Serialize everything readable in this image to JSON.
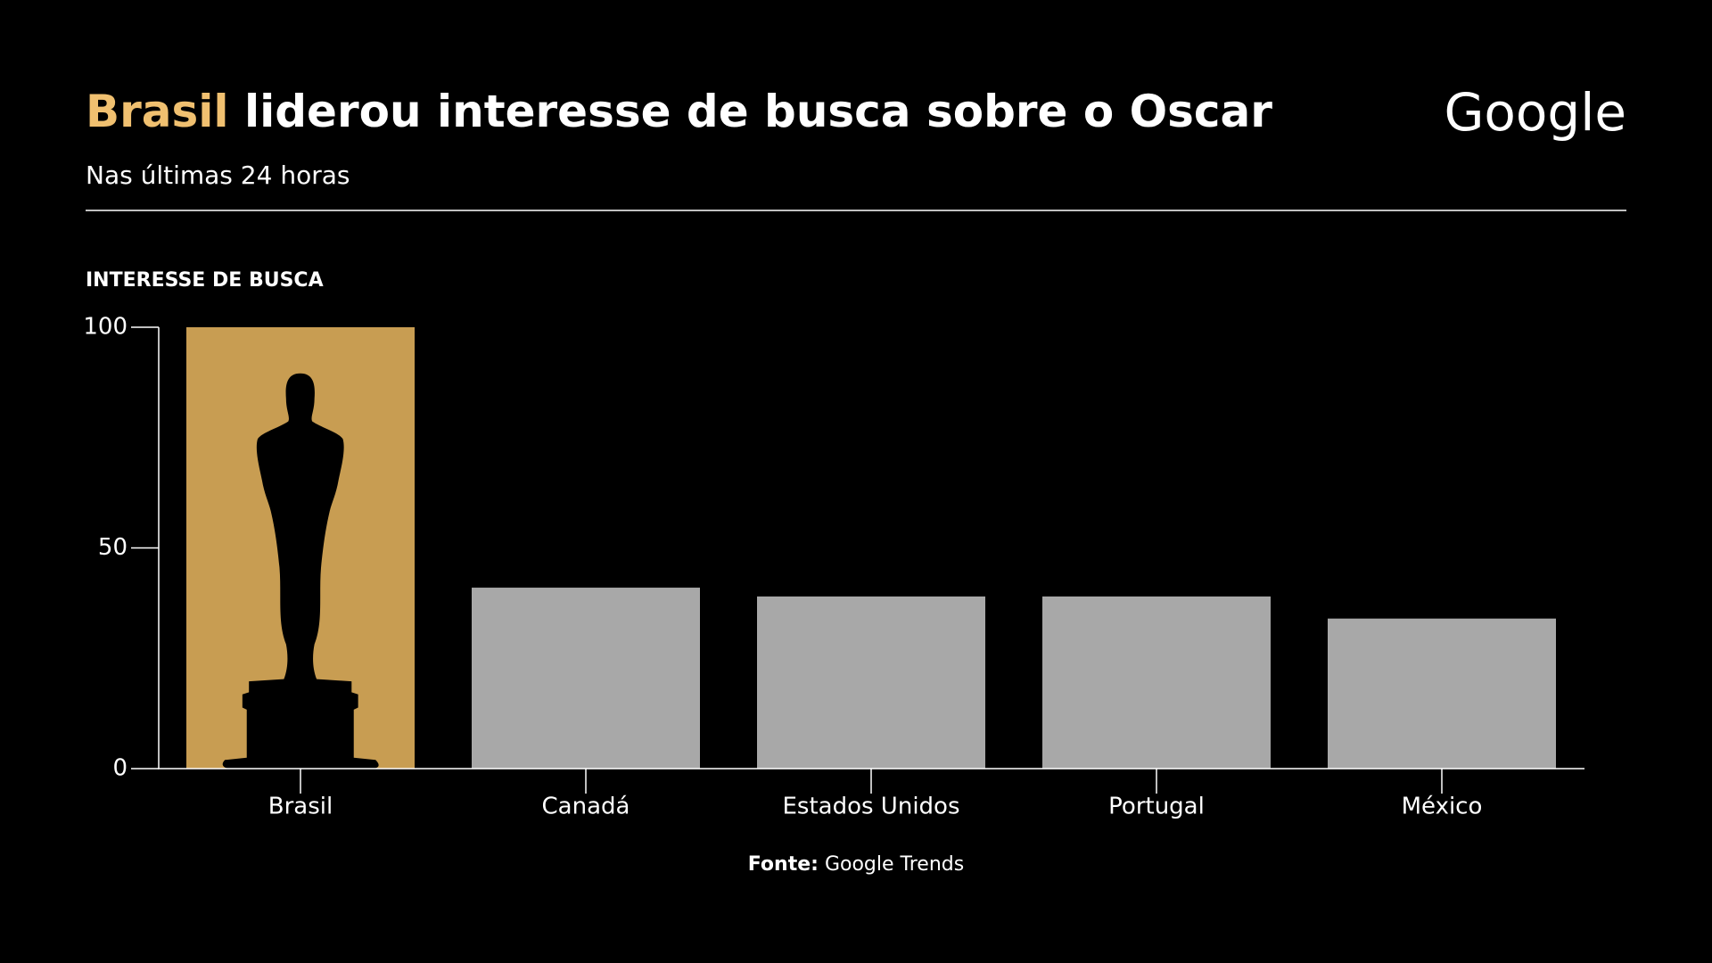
{
  "chart_data": {
    "type": "bar",
    "title_highlight": "Brasil",
    "title": "liderou interesse de busca sobre o Oscar",
    "subtitle": "Nas últimas 24 horas",
    "logo": "Google",
    "y_label": "INTERESSE DE BUSCA",
    "categories": [
      "Brasil",
      "Canadá",
      "Estados Unidos",
      "Portugal",
      "México"
    ],
    "values": [
      100,
      41,
      39,
      39,
      34
    ],
    "colors": [
      "#c89d52",
      "#a8a8a8",
      "#a8a8a8",
      "#a8a8a8",
      "#a8a8a8"
    ],
    "ylim": [
      0,
      100
    ],
    "yticks": [
      0,
      50,
      100
    ],
    "source_label": "Fonte:",
    "source": "Google Trends"
  }
}
